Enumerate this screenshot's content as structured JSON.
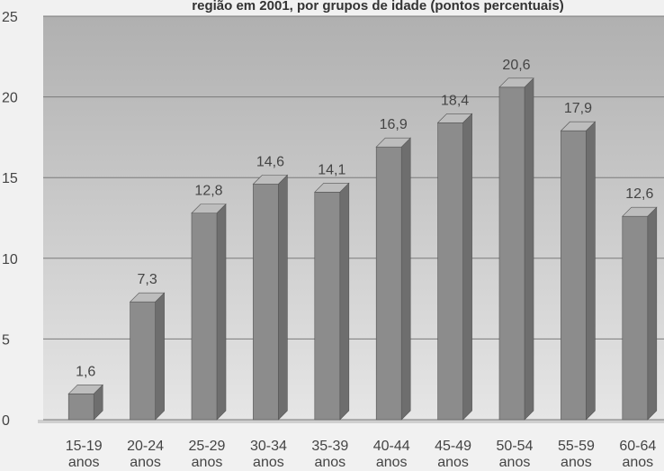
{
  "chart_data": {
    "type": "bar",
    "title": "região em 2001, por grupos de idade (pontos percentuais)",
    "categories": [
      "15-19 anos",
      "20-24 anos",
      "25-29 anos",
      "30-34 anos",
      "35-39 anos",
      "40-44 anos",
      "45-49 anos",
      "50-54 anos",
      "55-59 anos",
      "60-64 anos"
    ],
    "category_lines": [
      [
        "15-19",
        "anos"
      ],
      [
        "20-24",
        "anos"
      ],
      [
        "25-29",
        "anos"
      ],
      [
        "30-34",
        "anos"
      ],
      [
        "35-39",
        "anos"
      ],
      [
        "40-44",
        "anos"
      ],
      [
        "45-49",
        "anos"
      ],
      [
        "50-54",
        "anos"
      ],
      [
        "55-59",
        "anos"
      ],
      [
        "60-64",
        "anos"
      ]
    ],
    "values": [
      1.6,
      7.3,
      12.8,
      14.6,
      14.1,
      16.9,
      18.4,
      20.6,
      17.9,
      12.6
    ],
    "value_labels": [
      "1,6",
      "7,3",
      "12,8",
      "14,6",
      "14,1",
      "16,9",
      "18,4",
      "20,6",
      "17,9",
      "12,6"
    ],
    "y_ticks": [
      0,
      5,
      10,
      15,
      20,
      25
    ],
    "y_tick_labels": [
      "0",
      "5",
      "10",
      "15",
      "20",
      "25"
    ],
    "ylim": [
      0,
      25
    ],
    "grid": true,
    "legend": "none",
    "bar_style": "3d",
    "colors": {
      "bar_front": "#8c8c8c",
      "bar_top": "#bdbdbd",
      "bar_side": "#6e6e6e",
      "plot_background_top": "#b0b0b0",
      "plot_background_bottom": "#e6e6e6",
      "gridline": "#7a7a7a"
    }
  }
}
